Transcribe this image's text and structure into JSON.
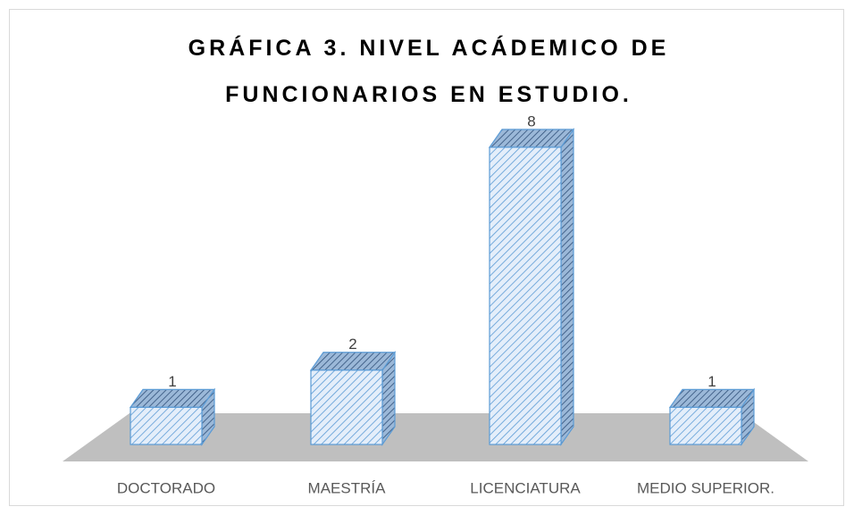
{
  "chart_data": {
    "type": "bar3d",
    "title": "GRÁFICA 3. NIVEL ACÁDEMICO DE FUNCIONARIOS EN ESTUDIO.",
    "categories": [
      "DOCTORADO",
      "MAESTRÍA",
      "LICENCIATURA",
      "MEDIO SUPERIOR."
    ],
    "values": [
      1,
      2,
      8,
      1
    ],
    "color": "#5b9bd5"
  }
}
